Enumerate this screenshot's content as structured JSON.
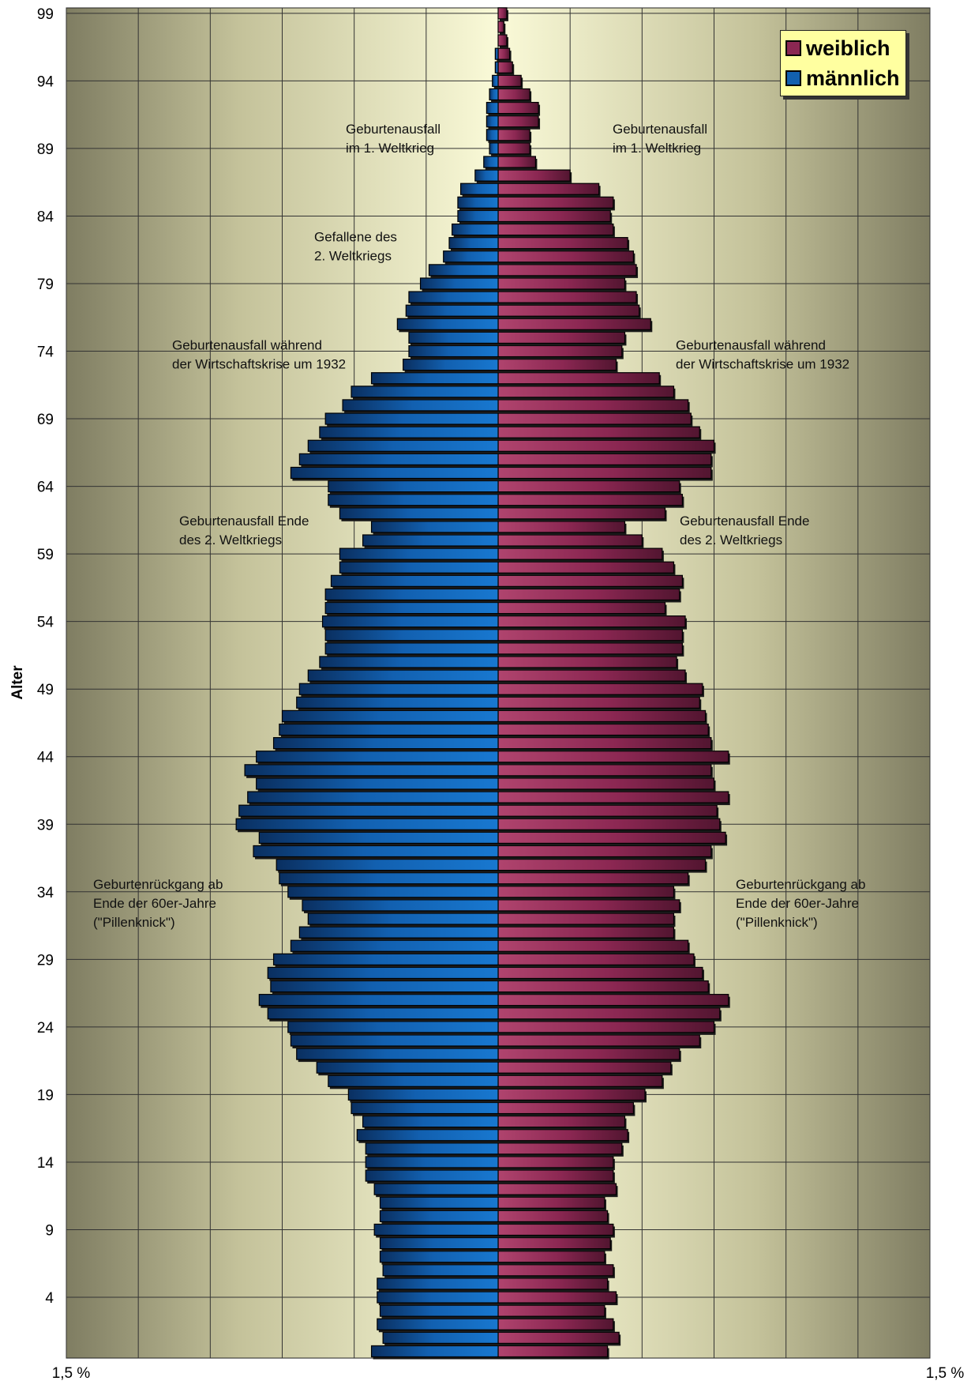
{
  "chart_data": {
    "type": "bar",
    "orientation": "horizontal",
    "ylabel": "Alter",
    "xlim_label_left": "1,5 %",
    "xlim_label_right": "1,5 %",
    "xlim": [
      -1.5,
      1.5
    ],
    "ylim": [
      0,
      99
    ],
    "y_ticks": [
      4,
      9,
      14,
      19,
      24,
      29,
      34,
      39,
      44,
      49,
      54,
      59,
      64,
      69,
      74,
      79,
      84,
      89,
      94,
      99
    ],
    "ages": [
      0,
      1,
      2,
      3,
      4,
      5,
      6,
      7,
      8,
      9,
      10,
      11,
      12,
      13,
      14,
      15,
      16,
      17,
      18,
      19,
      20,
      21,
      22,
      23,
      24,
      25,
      26,
      27,
      28,
      29,
      30,
      31,
      32,
      33,
      34,
      35,
      36,
      37,
      38,
      39,
      40,
      41,
      42,
      43,
      44,
      45,
      46,
      47,
      48,
      49,
      50,
      51,
      52,
      53,
      54,
      55,
      56,
      57,
      58,
      59,
      60,
      61,
      62,
      63,
      64,
      65,
      66,
      67,
      68,
      69,
      70,
      71,
      72,
      73,
      74,
      75,
      76,
      77,
      78,
      79,
      80,
      81,
      82,
      83,
      84,
      85,
      86,
      87,
      88,
      89,
      90,
      91,
      92,
      93,
      94,
      95,
      96,
      97,
      98,
      99
    ],
    "series": [
      {
        "name": "weiblich",
        "color": "#8b2752",
        "values": [
          0.38,
          0.42,
          0.4,
          0.37,
          0.41,
          0.38,
          0.4,
          0.37,
          0.39,
          0.4,
          0.38,
          0.37,
          0.41,
          0.4,
          0.4,
          0.43,
          0.45,
          0.44,
          0.47,
          0.51,
          0.57,
          0.6,
          0.63,
          0.7,
          0.75,
          0.77,
          0.8,
          0.73,
          0.71,
          0.68,
          0.66,
          0.61,
          0.61,
          0.63,
          0.61,
          0.66,
          0.72,
          0.74,
          0.79,
          0.77,
          0.76,
          0.8,
          0.75,
          0.74,
          0.8,
          0.74,
          0.73,
          0.72,
          0.7,
          0.71,
          0.65,
          0.62,
          0.64,
          0.64,
          0.65,
          0.58,
          0.63,
          0.64,
          0.61,
          0.57,
          0.5,
          0.44,
          0.58,
          0.64,
          0.63,
          0.74,
          0.74,
          0.75,
          0.7,
          0.67,
          0.66,
          0.61,
          0.56,
          0.41,
          0.43,
          0.44,
          0.53,
          0.49,
          0.48,
          0.44,
          0.48,
          0.47,
          0.45,
          0.4,
          0.39,
          0.4,
          0.35,
          0.25,
          0.13,
          0.11,
          0.11,
          0.14,
          0.14,
          0.11,
          0.08,
          0.05,
          0.04,
          0.03,
          0.02,
          0.03
        ]
      },
      {
        "name": "männlich",
        "color": "#1260b0",
        "values": [
          0.44,
          0.4,
          0.42,
          0.41,
          0.42,
          0.42,
          0.4,
          0.41,
          0.41,
          0.43,
          0.41,
          0.41,
          0.43,
          0.46,
          0.46,
          0.46,
          0.49,
          0.47,
          0.51,
          0.52,
          0.59,
          0.63,
          0.7,
          0.72,
          0.73,
          0.8,
          0.83,
          0.79,
          0.8,
          0.78,
          0.72,
          0.69,
          0.66,
          0.68,
          0.73,
          0.76,
          0.77,
          0.85,
          0.83,
          0.91,
          0.9,
          0.87,
          0.84,
          0.88,
          0.84,
          0.78,
          0.76,
          0.75,
          0.7,
          0.69,
          0.66,
          0.62,
          0.6,
          0.6,
          0.61,
          0.6,
          0.6,
          0.58,
          0.55,
          0.55,
          0.47,
          0.44,
          0.55,
          0.59,
          0.59,
          0.72,
          0.69,
          0.66,
          0.62,
          0.6,
          0.54,
          0.51,
          0.44,
          0.33,
          0.31,
          0.31,
          0.35,
          0.32,
          0.31,
          0.27,
          0.24,
          0.19,
          0.17,
          0.16,
          0.14,
          0.14,
          0.13,
          0.08,
          0.05,
          0.03,
          0.04,
          0.04,
          0.04,
          0.03,
          0.02,
          0.01,
          0.01,
          0.0,
          0.0,
          0.0
        ]
      }
    ],
    "legend": [
      "weiblich",
      "männlich"
    ],
    "legend_position": "top-right",
    "grid": true,
    "annotations": [
      {
        "side": "left",
        "age": 90,
        "lines": [
          "Geburtenausfall",
          "im 1. Weltkrieg"
        ]
      },
      {
        "side": "right",
        "age": 90,
        "lines": [
          "Geburtenausfall",
          "im 1. Weltkrieg"
        ]
      },
      {
        "side": "left",
        "age": 82,
        "lines": [
          "Gefallene des",
          "2. Weltkriegs"
        ]
      },
      {
        "side": "left",
        "age": 74,
        "lines": [
          "Geburtenausfall während",
          "der Wirtschaftskrise um 1932"
        ]
      },
      {
        "side": "right",
        "age": 74,
        "lines": [
          "Geburtenausfall während",
          "der Wirtschaftskrise um 1932"
        ]
      },
      {
        "side": "left",
        "age": 61,
        "lines": [
          "Geburtenausfall Ende",
          "des 2. Weltkriegs"
        ]
      },
      {
        "side": "right",
        "age": 61,
        "lines": [
          "Geburtenausfall Ende",
          "des 2. Weltkriegs"
        ]
      },
      {
        "side": "left",
        "age": 34,
        "lines": [
          "Geburtenrückgang ab",
          "Ende der 60er-Jahre",
          "(\"Pillenknick\")"
        ]
      },
      {
        "side": "right",
        "age": 34,
        "lines": [
          "Geburtenrückgang ab",
          "Ende der 60er-Jahre",
          "(\"Pillenknick\")"
        ]
      }
    ]
  }
}
